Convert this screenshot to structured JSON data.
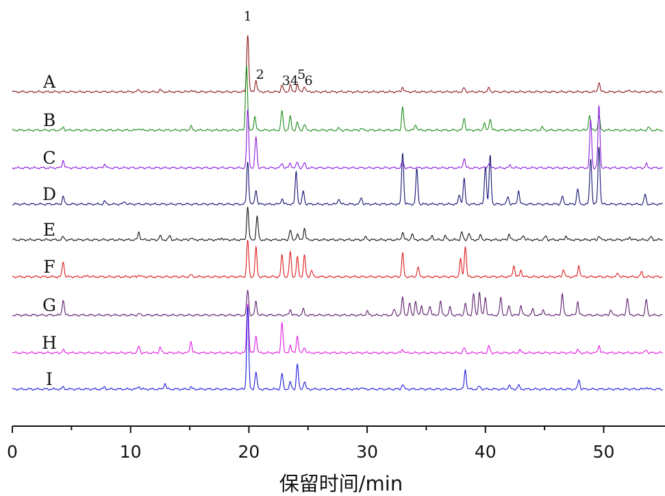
{
  "chart_data": {
    "type": "line",
    "xlabel": "保留时间/min",
    "xlim": [
      0,
      55
    ],
    "xticks": [
      0,
      10,
      20,
      30,
      40,
      50
    ],
    "xtick_labels": [
      "0",
      "10",
      "20",
      "30",
      "40",
      "50"
    ],
    "peak_labels": [
      {
        "text": "1",
        "x": 19.9
      },
      {
        "text": "2",
        "x": 20.6
      },
      {
        "text": "3",
        "x": 22.8
      },
      {
        "text": "4",
        "x": 23.5
      },
      {
        "text": "5",
        "x": 24.1
      },
      {
        "text": "6",
        "x": 24.7
      }
    ],
    "series": [
      {
        "name": "A",
        "color": "#8b1a1a",
        "peaks": [
          [
            10.7,
            0.12
          ],
          [
            12.5,
            0.1
          ],
          [
            15.1,
            0.08
          ],
          [
            19.9,
            3.0
          ],
          [
            20.6,
            0.6
          ],
          [
            22.8,
            0.35
          ],
          [
            23.5,
            0.35
          ],
          [
            24.1,
            0.4
          ],
          [
            24.7,
            0.3
          ],
          [
            33.0,
            0.25
          ],
          [
            38.2,
            0.2
          ],
          [
            40.3,
            0.2
          ],
          [
            49.6,
            0.5
          ],
          [
            52.2,
            0.1
          ]
        ]
      },
      {
        "name": "B",
        "color": "#1a8c1a",
        "peaks": [
          [
            4.3,
            0.15
          ],
          [
            10.7,
            0.1
          ],
          [
            15.1,
            0.2
          ],
          [
            19.8,
            3.4
          ],
          [
            20.5,
            0.7
          ],
          [
            22.8,
            1.0
          ],
          [
            23.5,
            0.7
          ],
          [
            24.1,
            0.4
          ],
          [
            24.7,
            0.3
          ],
          [
            27.6,
            0.1
          ],
          [
            29.5,
            0.1
          ],
          [
            33.0,
            1.2
          ],
          [
            34.1,
            0.3
          ],
          [
            38.2,
            0.65
          ],
          [
            39.9,
            0.35
          ],
          [
            40.4,
            0.6
          ],
          [
            44.8,
            0.15
          ],
          [
            48.8,
            0.75
          ],
          [
            49.6,
            0.7
          ],
          [
            53.8,
            0.15
          ]
        ]
      },
      {
        "name": "C",
        "color": "#8c1adc",
        "peaks": [
          [
            4.3,
            0.4
          ],
          [
            7.8,
            0.2
          ],
          [
            19.9,
            3.0
          ],
          [
            20.6,
            1.6
          ],
          [
            22.8,
            0.25
          ],
          [
            23.5,
            0.25
          ],
          [
            24.1,
            0.3
          ],
          [
            24.7,
            0.25
          ],
          [
            33.0,
            0.35
          ],
          [
            38.2,
            0.5
          ],
          [
            40.3,
            0.25
          ],
          [
            42.1,
            0.15
          ],
          [
            48.9,
            2.5
          ],
          [
            49.6,
            3.2
          ],
          [
            53.6,
            0.2
          ]
        ]
      },
      {
        "name": "D",
        "color": "#101070",
        "peaks": [
          [
            4.3,
            0.4
          ],
          [
            7.8,
            0.15
          ],
          [
            9.5,
            0.15
          ],
          [
            19.9,
            2.2
          ],
          [
            20.6,
            0.75
          ],
          [
            22.8,
            0.3
          ],
          [
            24.0,
            1.7
          ],
          [
            24.6,
            0.7
          ],
          [
            27.6,
            0.3
          ],
          [
            29.5,
            0.35
          ],
          [
            33.0,
            2.7
          ],
          [
            34.2,
            1.8
          ],
          [
            37.8,
            0.5
          ],
          [
            38.2,
            1.3
          ],
          [
            40.0,
            2.0
          ],
          [
            40.4,
            2.5
          ],
          [
            41.9,
            0.4
          ],
          [
            42.8,
            0.7
          ],
          [
            46.5,
            0.4
          ],
          [
            47.8,
            0.8
          ],
          [
            48.9,
            2.4
          ],
          [
            49.6,
            3.0
          ],
          [
            53.5,
            0.5
          ]
        ]
      },
      {
        "name": "E",
        "color": "#111111",
        "peaks": [
          [
            4.3,
            0.15
          ],
          [
            10.7,
            0.4
          ],
          [
            12.5,
            0.2
          ],
          [
            13.3,
            0.2
          ],
          [
            15.1,
            0.1
          ],
          [
            17.7,
            0.1
          ],
          [
            19.9,
            1.7
          ],
          [
            20.7,
            1.2
          ],
          [
            23.5,
            0.5
          ],
          [
            24.1,
            0.3
          ],
          [
            24.7,
            0.6
          ],
          [
            29.9,
            0.15
          ],
          [
            33.0,
            0.4
          ],
          [
            33.8,
            0.3
          ],
          [
            35.5,
            0.2
          ],
          [
            36.6,
            0.2
          ],
          [
            38.0,
            0.4
          ],
          [
            38.6,
            0.35
          ],
          [
            39.6,
            0.25
          ],
          [
            42.0,
            0.3
          ],
          [
            43.2,
            0.25
          ],
          [
            45.1,
            0.2
          ],
          [
            46.8,
            0.2
          ],
          [
            49.6,
            0.2
          ],
          [
            52.2,
            0.15
          ],
          [
            54.0,
            0.15
          ]
        ]
      },
      {
        "name": "F",
        "color": "#dc1a1a",
        "peaks": [
          [
            4.3,
            0.8
          ],
          [
            6.4,
            0.08
          ],
          [
            10.7,
            0.1
          ],
          [
            15.1,
            0.1
          ],
          [
            19.9,
            1.9
          ],
          [
            20.6,
            1.5
          ],
          [
            22.8,
            1.1
          ],
          [
            23.5,
            1.3
          ],
          [
            24.1,
            1.0
          ],
          [
            24.7,
            1.1
          ],
          [
            25.3,
            0.35
          ],
          [
            33.0,
            1.2
          ],
          [
            34.3,
            0.5
          ],
          [
            37.9,
            0.9
          ],
          [
            38.3,
            1.6
          ],
          [
            42.4,
            0.6
          ],
          [
            43.0,
            0.35
          ],
          [
            46.6,
            0.4
          ],
          [
            47.9,
            0.6
          ],
          [
            51.2,
            0.2
          ],
          [
            53.2,
            0.25
          ]
        ]
      },
      {
        "name": "G",
        "color": "#5a1a6a",
        "peaks": [
          [
            4.3,
            0.8
          ],
          [
            10.7,
            0.08
          ],
          [
            19.9,
            1.3
          ],
          [
            20.6,
            0.7
          ],
          [
            23.5,
            0.3
          ],
          [
            24.6,
            0.3
          ],
          [
            30.0,
            0.2
          ],
          [
            32.3,
            0.3
          ],
          [
            33.0,
            0.9
          ],
          [
            33.6,
            0.6
          ],
          [
            34.1,
            0.7
          ],
          [
            34.6,
            0.5
          ],
          [
            35.3,
            0.5
          ],
          [
            36.2,
            0.7
          ],
          [
            37.0,
            0.4
          ],
          [
            38.3,
            0.6
          ],
          [
            39.0,
            1.1
          ],
          [
            39.5,
            1.2
          ],
          [
            40.0,
            0.9
          ],
          [
            41.3,
            0.9
          ],
          [
            42.0,
            0.5
          ],
          [
            43.0,
            0.5
          ],
          [
            44.0,
            0.3
          ],
          [
            44.9,
            0.3
          ],
          [
            46.5,
            1.1
          ],
          [
            47.8,
            0.7
          ],
          [
            50.6,
            0.3
          ],
          [
            52.0,
            0.9
          ],
          [
            53.6,
            0.8
          ]
        ]
      },
      {
        "name": "H",
        "color": "#e01ae0",
        "peaks": [
          [
            4.3,
            0.15
          ],
          [
            10.7,
            0.35
          ],
          [
            12.5,
            0.3
          ],
          [
            15.1,
            0.6
          ],
          [
            19.9,
            2.6
          ],
          [
            20.6,
            0.9
          ],
          [
            22.8,
            1.6
          ],
          [
            23.5,
            0.4
          ],
          [
            24.1,
            0.9
          ],
          [
            24.7,
            0.3
          ],
          [
            33.0,
            0.2
          ],
          [
            38.2,
            0.25
          ],
          [
            40.3,
            0.35
          ],
          [
            42.9,
            0.15
          ],
          [
            47.8,
            0.15
          ],
          [
            49.6,
            0.4
          ],
          [
            53.6,
            0.15
          ]
        ]
      },
      {
        "name": "I",
        "color": "#1a1adc",
        "peaks": [
          [
            4.3,
            0.1
          ],
          [
            7.8,
            0.1
          ],
          [
            10.7,
            0.15
          ],
          [
            12.9,
            0.3
          ],
          [
            15.1,
            0.1
          ],
          [
            19.9,
            4.3
          ],
          [
            20.6,
            0.9
          ],
          [
            22.8,
            0.8
          ],
          [
            23.5,
            0.35
          ],
          [
            24.1,
            1.3
          ],
          [
            24.7,
            0.4
          ],
          [
            29.5,
            0.1
          ],
          [
            33.0,
            0.25
          ],
          [
            38.3,
            1.0
          ],
          [
            39.5,
            0.15
          ],
          [
            42.0,
            0.2
          ],
          [
            42.8,
            0.2
          ],
          [
            47.9,
            0.5
          ],
          [
            53.6,
            0.1
          ]
        ]
      }
    ]
  }
}
